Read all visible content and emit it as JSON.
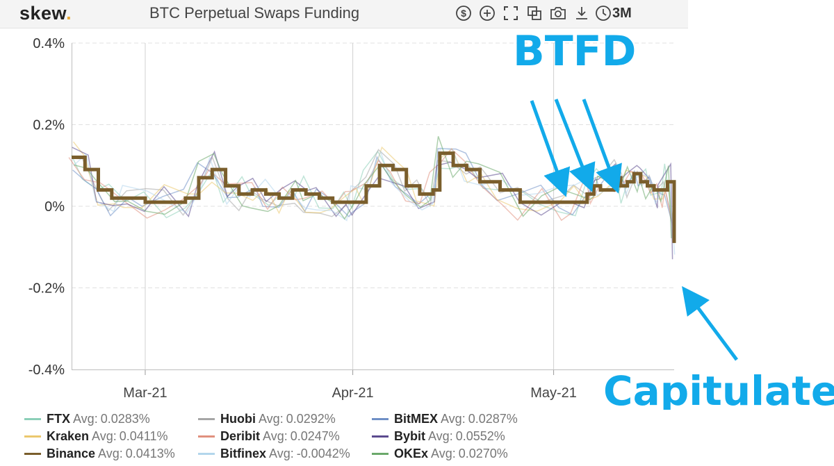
{
  "header": {
    "brand": "skew",
    "brand_dot": ".",
    "title": "BTC Perpetual Swaps Funding",
    "range": "3M"
  },
  "toolbar": [
    {
      "name": "currency-icon"
    },
    {
      "name": "add-icon"
    },
    {
      "name": "fullscreen-icon"
    },
    {
      "name": "compare-icon"
    },
    {
      "name": "camera-icon"
    },
    {
      "name": "download-icon"
    },
    {
      "name": "clock-icon"
    }
  ],
  "colors": {
    "binance": "#7a5e2c",
    "arrow": "#12aaea",
    "grid": "#e0e0e0"
  },
  "legend": [
    {
      "name": "FTX",
      "avg_label": "Avg:",
      "avg": "0.0283%",
      "color": "#8ccfb8"
    },
    {
      "name": "Huobi",
      "avg_label": "Avg:",
      "avg": "0.0292%",
      "color": "#a6a6a6"
    },
    {
      "name": "BitMEX",
      "avg_label": "Avg:",
      "avg": "0.0287%",
      "color": "#6f8fc6"
    },
    {
      "name": "Kraken",
      "avg_label": "Avg:",
      "avg": "0.0411%",
      "color": "#ebc86e"
    },
    {
      "name": "Deribit",
      "avg_label": "Avg:",
      "avg": "0.0247%",
      "color": "#e0907e"
    },
    {
      "name": "Bybit",
      "avg_label": "Avg:",
      "avg": "0.0552%",
      "color": "#5b4a8e"
    },
    {
      "name": "Binance",
      "avg_label": "Avg:",
      "avg": "0.0413%",
      "color": "#7a5e2c"
    },
    {
      "name": "Bitfinex",
      "avg_label": "Avg:",
      "avg": "-0.0042%",
      "color": "#b3d6ec"
    },
    {
      "name": "OKEx",
      "avg_label": "Avg:",
      "avg": "0.0270%",
      "color": "#6aa86a"
    }
  ],
  "annotations": {
    "top": "BTFD",
    "bottom": "Capitulate"
  },
  "chart_data": {
    "type": "line",
    "title": "BTC Perpetual Swaps Funding",
    "xlabel": "",
    "ylabel": "",
    "x_range": [
      "2021-02-18",
      "2021-05-19"
    ],
    "x_ticks": [
      {
        "date": "2021-03-01",
        "label": "Mar-21"
      },
      {
        "date": "2021-04-01",
        "label": "Apr-21"
      },
      {
        "date": "2021-05-01",
        "label": "May-21"
      }
    ],
    "y_ticks": [
      {
        "value": 0.4,
        "label": "0.4%"
      },
      {
        "value": 0.2,
        "label": "0.2%"
      },
      {
        "value": 0.0,
        "label": "0%"
      },
      {
        "value": -0.2,
        "label": "-0.2%"
      },
      {
        "value": -0.4,
        "label": "-0.4%"
      }
    ],
    "ylim": [
      -0.4,
      0.4
    ],
    "grid": "horizontal dashed",
    "legend_position": "bottom",
    "series": [
      {
        "name": "Binance",
        "x": [
          "2021-02-18",
          "2021-02-20",
          "2021-02-22",
          "2021-02-24",
          "2021-02-26",
          "2021-03-01",
          "2021-03-04",
          "2021-03-07",
          "2021-03-09",
          "2021-03-11",
          "2021-03-13",
          "2021-03-15",
          "2021-03-17",
          "2021-03-19",
          "2021-03-21",
          "2021-03-23",
          "2021-03-25",
          "2021-03-27",
          "2021-03-29",
          "2021-03-31",
          "2021-04-01",
          "2021-04-03",
          "2021-04-05",
          "2021-04-07",
          "2021-04-09",
          "2021-04-11",
          "2021-04-13",
          "2021-04-14",
          "2021-04-16",
          "2021-04-18",
          "2021-04-20",
          "2021-04-23",
          "2021-04-26",
          "2021-04-29",
          "2021-05-02",
          "2021-05-04",
          "2021-05-06",
          "2021-05-07",
          "2021-05-08",
          "2021-05-10",
          "2021-05-11",
          "2021-05-12",
          "2021-05-13",
          "2021-05-14",
          "2021-05-15",
          "2021-05-16",
          "2021-05-17",
          "2021-05-18",
          "2021-05-19"
        ],
        "values": [
          0.12,
          0.09,
          0.04,
          0.02,
          0.02,
          0.01,
          0.01,
          0.02,
          0.07,
          0.09,
          0.05,
          0.03,
          0.04,
          0.03,
          0.02,
          0.04,
          0.03,
          0.02,
          0.01,
          0.01,
          0.01,
          0.05,
          0.1,
          0.09,
          0.05,
          0.03,
          0.04,
          0.13,
          0.1,
          0.09,
          0.06,
          0.04,
          0.01,
          0.01,
          0.01,
          0.01,
          0.03,
          0.05,
          0.04,
          0.07,
          0.05,
          0.06,
          0.08,
          0.06,
          0.05,
          0.04,
          0.04,
          0.06,
          -0.09
        ]
      }
    ]
  }
}
